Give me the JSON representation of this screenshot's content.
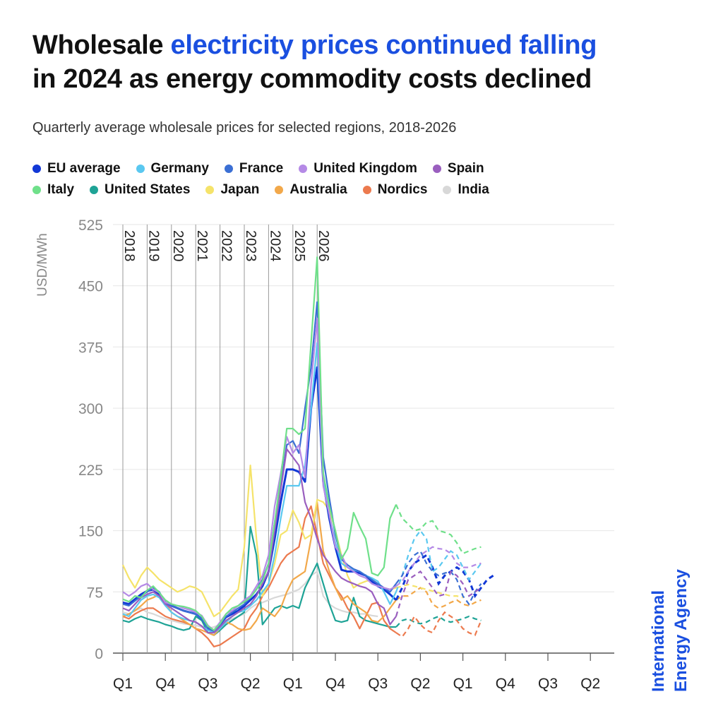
{
  "header": {
    "title_part1": "Wholesale ",
    "title_highlight": "electricity prices continued falling",
    "title_part2": "in 2024 as energy commodity costs declined",
    "subtitle": "Quarterly average wholesale prices for selected regions, 2018-2026"
  },
  "branding": {
    "line1": "International",
    "line2": "Energy Agency",
    "color": "#1a4fe0"
  },
  "chart_data": {
    "type": "line",
    "title": "Wholesale electricity prices continued falling in 2024 as energy commodity costs declined",
    "subtitle": "Quarterly average wholesale prices for selected regions, 2018-2026",
    "ylabel": "USD/MWh",
    "xlabel": "",
    "ylim": [
      0,
      525
    ],
    "yticks": [
      0,
      75,
      150,
      225,
      300,
      375,
      450,
      525
    ],
    "grid": true,
    "legend_position": "top",
    "x_start": "2018 Q1",
    "x_end": "2026 Q4",
    "year_labels": [
      "2018",
      "2019",
      "2020",
      "2021",
      "2022",
      "2023",
      "2024",
      "2025",
      "2026"
    ],
    "quarter_ticks": [
      {
        "i": 0,
        "label": "Q1"
      },
      {
        "i": 7,
        "label": "Q4"
      },
      {
        "i": 14,
        "label": "Q3"
      },
      {
        "i": 21,
        "label": "Q2"
      },
      {
        "i": 28,
        "label": "Q1"
      },
      {
        "i": 35,
        "label": "Q4"
      },
      {
        "i": 42,
        "label": "Q3"
      },
      {
        "i": 49,
        "label": "Q2"
      },
      {
        "i": 56,
        "label": "Q1"
      },
      {
        "i": 63,
        "label": "Q4"
      },
      {
        "i": 70,
        "label": "Q3"
      },
      {
        "i": 77,
        "label": "Q2"
      }
    ],
    "forecast_start_index": 63,
    "series": [
      {
        "name": "Italy",
        "color": "#6fe08a",
        "values": [
          66,
          63,
          70,
          68,
          77,
          82,
          74,
          65,
          60,
          58,
          57,
          55,
          52,
          45,
          33,
          28,
          36,
          48,
          55,
          58,
          63,
          68,
          78,
          88,
          110,
          160,
          215,
          275,
          275,
          268,
          275,
          380,
          485,
          220,
          180,
          150,
          115,
          128,
          172,
          155,
          140,
          98,
          95,
          105,
          165,
          182,
          165,
          158,
          150,
          152,
          160,
          162,
          150,
          148,
          145,
          135,
          122,
          125,
          128,
          130
        ],
        "forecast_from": 45
      },
      {
        "name": "United Kingdom",
        "color": "#b58ae6",
        "values": [
          75,
          70,
          75,
          82,
          85,
          78,
          74,
          62,
          60,
          58,
          55,
          53,
          50,
          46,
          34,
          28,
          38,
          48,
          52,
          58,
          65,
          70,
          82,
          95,
          120,
          180,
          220,
          265,
          245,
          255,
          215,
          330,
          410,
          205,
          170,
          130,
          120,
          105,
          100,
          95,
          92,
          85,
          82,
          80,
          78,
          82,
          88,
          100,
          110,
          120,
          125,
          130,
          128,
          127,
          122,
          110,
          105,
          105,
          108,
          110
        ],
        "forecast_from": 45
      },
      {
        "name": "Spain",
        "color": "#9a5fbf",
        "values": [
          55,
          52,
          60,
          68,
          72,
          75,
          70,
          60,
          55,
          50,
          45,
          40,
          38,
          33,
          25,
          25,
          32,
          40,
          45,
          50,
          55,
          60,
          70,
          85,
          100,
          150,
          200,
          250,
          240,
          230,
          185,
          165,
          140,
          120,
          110,
          100,
          92,
          88,
          85,
          82,
          80,
          75,
          60,
          55,
          35,
          45,
          70,
          90,
          95,
          100,
          90,
          80,
          70,
          72,
          100,
          95,
          85,
          70,
          75,
          80
        ],
        "forecast_from": 45
      },
      {
        "name": "France",
        "color": "#3b6fd4",
        "values": [
          60,
          58,
          64,
          70,
          75,
          80,
          75,
          62,
          58,
          55,
          52,
          50,
          48,
          42,
          30,
          27,
          35,
          45,
          50,
          55,
          60,
          68,
          78,
          90,
          110,
          160,
          205,
          255,
          260,
          245,
          300,
          350,
          430,
          240,
          190,
          145,
          115,
          108,
          103,
          100,
          95,
          90,
          85,
          80,
          75,
          85,
          95,
          110,
          120,
          125,
          110,
          100,
          95,
          98,
          100,
          90,
          70,
          60,
          75,
          85
        ],
        "forecast_from": 45
      },
      {
        "name": "Germany",
        "color": "#5ac8f0",
        "values": [
          48,
          45,
          55,
          65,
          70,
          72,
          68,
          58,
          50,
          45,
          42,
          40,
          38,
          33,
          28,
          25,
          30,
          38,
          45,
          50,
          52,
          58,
          65,
          75,
          85,
          120,
          165,
          205,
          205,
          205,
          230,
          300,
          380,
          210,
          170,
          135,
          110,
          105,
          102,
          100,
          95,
          92,
          88,
          75,
          60,
          75,
          95,
          120,
          140,
          150,
          140,
          100,
          105,
          115,
          125,
          120,
          105,
          90,
          100,
          110
        ],
        "forecast_from": 45
      },
      {
        "name": "EU average",
        "color": "#1238d6",
        "values": [
          62,
          60,
          66,
          72,
          76,
          78,
          72,
          62,
          58,
          55,
          52,
          50,
          48,
          42,
          32,
          26,
          35,
          44,
          48,
          52,
          58,
          65,
          72,
          82,
          100,
          140,
          185,
          225,
          225,
          222,
          210,
          300,
          350,
          210,
          165,
          130,
          102,
          100,
          100,
          98,
          95,
          88,
          82,
          78,
          72,
          65,
          80,
          100,
          110,
          115,
          120,
          105,
          85,
          95,
          100,
          105,
          100,
          90,
          70,
          80,
          90,
          95
        ],
        "forecast_from": 45
      },
      {
        "name": "Japan",
        "color": "#f5e36a",
        "values": [
          108,
          92,
          80,
          95,
          105,
          98,
          90,
          85,
          80,
          75,
          78,
          82,
          80,
          75,
          60,
          45,
          50,
          60,
          70,
          78,
          130,
          230,
          140,
          70,
          85,
          110,
          145,
          150,
          175,
          160,
          140,
          145,
          188,
          185,
          175,
          150,
          120,
          95,
          80,
          85,
          88,
          90,
          85,
          80,
          78,
          80,
          82,
          84,
          82,
          80,
          78,
          76,
          74,
          72,
          70,
          70,
          68
        ],
        "forecast_from": 45
      },
      {
        "name": "Australia",
        "color": "#f2a84a",
        "values": [
          45,
          48,
          52,
          58,
          65,
          68,
          72,
          62,
          50,
          45,
          40,
          35,
          30,
          28,
          25,
          22,
          30,
          38,
          35,
          30,
          28,
          30,
          40,
          55,
          50,
          45,
          55,
          75,
          90,
          95,
          100,
          140,
          185,
          125,
          100,
          80,
          65,
          70,
          60,
          55,
          50,
          40,
          38,
          45,
          55,
          65,
          70,
          70,
          75,
          80,
          75,
          60,
          55,
          58,
          62,
          65,
          60,
          58,
          62,
          65
        ],
        "forecast_from": 45
      },
      {
        "name": "Nordics",
        "color": "#ec7a4e",
        "values": [
          45,
          42,
          48,
          52,
          55,
          55,
          50,
          45,
          42,
          40,
          38,
          35,
          30,
          25,
          18,
          8,
          10,
          15,
          20,
          25,
          30,
          45,
          55,
          70,
          80,
          95,
          110,
          120,
          125,
          130,
          165,
          180,
          145,
          110,
          95,
          80,
          70,
          55,
          45,
          30,
          45,
          60,
          62,
          40,
          30,
          25,
          20,
          30,
          45,
          35,
          28,
          25,
          40,
          50,
          45,
          40,
          30,
          25,
          22,
          40
        ],
        "forecast_from": 45
      },
      {
        "name": "United States",
        "color": "#1ea396",
        "values": [
          40,
          38,
          42,
          45,
          42,
          40,
          38,
          35,
          33,
          30,
          28,
          30,
          45,
          40,
          25,
          22,
          28,
          35,
          40,
          45,
          50,
          155,
          120,
          35,
          45,
          55,
          58,
          55,
          58,
          55,
          80,
          95,
          110,
          85,
          60,
          40,
          38,
          40,
          68,
          45,
          40,
          38,
          36,
          34,
          32,
          32,
          40,
          42,
          38,
          36,
          38,
          42,
          45,
          40,
          38,
          40,
          42,
          45,
          42,
          40
        ],
        "forecast_from": 45
      },
      {
        "name": "India",
        "color": "#d8d8d8",
        "values": [
          50,
          48,
          52,
          55,
          50,
          48,
          45,
          42,
          40,
          38,
          36,
          35,
          34,
          32,
          30,
          32,
          35,
          38,
          42,
          45,
          48,
          55,
          60,
          62,
          65,
          68,
          70,
          72,
          75,
          78,
          85,
          95,
          100,
          70,
          60,
          55,
          52,
          50,
          50,
          48,
          48,
          46,
          45
        ],
        "forecast_from": 45
      }
    ]
  }
}
